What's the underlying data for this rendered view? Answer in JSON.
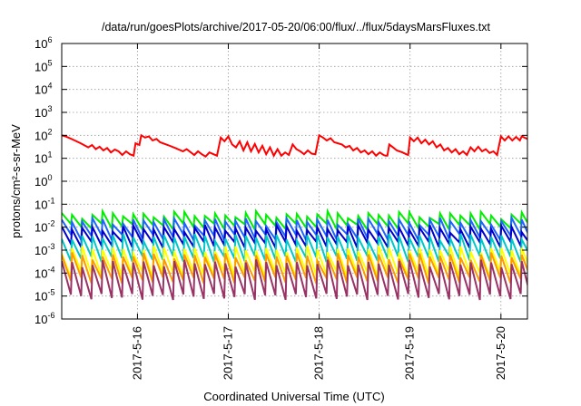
{
  "chart_data": {
    "type": "line",
    "title": "/data/run/goesPlots/archive/2017-05-20/06:00/flux/../flux/5daysMarsFluxes.txt",
    "xlabel": "Coordinated Universal Time (UTC)",
    "ylabel": "protons/cm²-s-sr-MeV",
    "y_scale": "log",
    "ylim": [
      1e-06,
      1000000
    ],
    "xlim": [
      "2017-05-15T04:00",
      "2017-05-20T07:00"
    ],
    "y_ticks": [
      {
        "base": "10",
        "exp": "-6",
        "value": 1e-06
      },
      {
        "base": "10",
        "exp": "-5",
        "value": 1e-05
      },
      {
        "base": "10",
        "exp": "-4",
        "value": 0.0001
      },
      {
        "base": "10",
        "exp": "-3",
        "value": 0.001
      },
      {
        "base": "10",
        "exp": "-2",
        "value": 0.01
      },
      {
        "base": "10",
        "exp": "-1",
        "value": 0.1
      },
      {
        "base": "10",
        "exp": "0",
        "value": 1
      },
      {
        "base": "10",
        "exp": "1",
        "value": 10
      },
      {
        "base": "10",
        "exp": "2",
        "value": 100
      },
      {
        "base": "10",
        "exp": "3",
        "value": 1000
      },
      {
        "base": "10",
        "exp": "4",
        "value": 10000
      },
      {
        "base": "10",
        "exp": "5",
        "value": 100000
      },
      {
        "base": "10",
        "exp": "6",
        "value": 1000000
      }
    ],
    "x_ticks": [
      {
        "label": "2017-5-16",
        "value": "2017-05-16T00:00"
      },
      {
        "label": "2017-5-17",
        "value": "2017-05-17T00:00"
      },
      {
        "label": "2017-5-18",
        "value": "2017-05-18T00:00"
      },
      {
        "label": "2017-5-19",
        "value": "2017-05-19T00:00"
      },
      {
        "label": "2017-5-20",
        "value": "2017-05-20T00:00"
      }
    ],
    "grid": true,
    "legend": "none",
    "series": [
      {
        "color": "#ff0000",
        "points": [
          [
            "2017-05-15T04:00",
            100
          ],
          [
            "2017-05-15T05:00",
            90
          ],
          [
            "2017-05-15T07:00",
            65
          ],
          [
            "2017-05-15T09:00",
            45
          ],
          [
            "2017-05-15T11:00",
            30
          ],
          [
            "2017-05-15T12:00",
            38
          ],
          [
            "2017-05-15T13:00",
            25
          ],
          [
            "2017-05-15T14:00",
            32
          ],
          [
            "2017-05-15T15:00",
            22
          ],
          [
            "2017-05-15T16:00",
            28
          ],
          [
            "2017-05-15T17:00",
            18
          ],
          [
            "2017-05-15T18:00",
            24
          ],
          [
            "2017-05-15T19:00",
            20
          ],
          [
            "2017-05-15T20:00",
            14
          ],
          [
            "2017-05-15T21:00",
            20
          ],
          [
            "2017-05-15T22:00",
            15
          ],
          [
            "2017-05-15T23:00",
            13
          ],
          [
            "2017-05-15T23:30",
            45
          ],
          [
            "2017-05-16T00:30",
            38
          ],
          [
            "2017-05-16T01:00",
            100
          ],
          [
            "2017-05-16T02:00",
            80
          ],
          [
            "2017-05-16T03:00",
            90
          ],
          [
            "2017-05-16T04:00",
            60
          ],
          [
            "2017-05-16T05:00",
            70
          ],
          [
            "2017-05-16T06:00",
            50
          ],
          [
            "2017-05-16T08:00",
            38
          ],
          [
            "2017-05-16T10:00",
            28
          ],
          [
            "2017-05-16T12:00",
            20
          ],
          [
            "2017-05-16T13:00",
            25
          ],
          [
            "2017-05-16T15:00",
            14
          ],
          [
            "2017-05-16T16:00",
            20
          ],
          [
            "2017-05-16T17:00",
            15
          ],
          [
            "2017-05-16T18:00",
            12
          ],
          [
            "2017-05-16T19:00",
            18
          ],
          [
            "2017-05-16T21:00",
            13
          ],
          [
            "2017-05-16T22:00",
            80
          ],
          [
            "2017-05-16T23:00",
            55
          ],
          [
            "2017-05-17T00:00",
            90
          ],
          [
            "2017-05-17T01:00",
            40
          ],
          [
            "2017-05-17T02:00",
            30
          ],
          [
            "2017-05-17T03:00",
            55
          ],
          [
            "2017-05-17T04:00",
            22
          ],
          [
            "2017-05-17T05:00",
            50
          ],
          [
            "2017-05-17T06:00",
            20
          ],
          [
            "2017-05-17T07:00",
            42
          ],
          [
            "2017-05-17T08:00",
            18
          ],
          [
            "2017-05-17T09:00",
            35
          ],
          [
            "2017-05-17T10:00",
            15
          ],
          [
            "2017-05-17T11:00",
            30
          ],
          [
            "2017-05-17T12:00",
            13
          ],
          [
            "2017-05-17T13:00",
            25
          ],
          [
            "2017-05-17T14:00",
            13
          ],
          [
            "2017-05-17T15:00",
            18
          ],
          [
            "2017-05-17T16:00",
            14
          ],
          [
            "2017-05-17T17:00",
            40
          ],
          [
            "2017-05-17T18:00",
            25
          ],
          [
            "2017-05-17T19:00",
            20
          ],
          [
            "2017-05-17T20:00",
            15
          ],
          [
            "2017-05-17T21:00",
            22
          ],
          [
            "2017-05-17T22:00",
            16
          ],
          [
            "2017-05-17T23:00",
            15
          ],
          [
            "2017-05-18T00:00",
            100
          ],
          [
            "2017-05-18T01:00",
            80
          ],
          [
            "2017-05-18T02:00",
            60
          ],
          [
            "2017-05-18T03:00",
            75
          ],
          [
            "2017-05-18T04:00",
            50
          ],
          [
            "2017-05-18T06:00",
            40
          ],
          [
            "2017-05-18T07:00",
            30
          ],
          [
            "2017-05-18T08:00",
            35
          ],
          [
            "2017-05-18T09:00",
            22
          ],
          [
            "2017-05-18T10:00",
            28
          ],
          [
            "2017-05-18T11:00",
            18
          ],
          [
            "2017-05-18T12:00",
            22
          ],
          [
            "2017-05-18T13:00",
            15
          ],
          [
            "2017-05-18T14:00",
            20
          ],
          [
            "2017-05-18T15:00",
            13
          ],
          [
            "2017-05-18T16:00",
            18
          ],
          [
            "2017-05-18T17:00",
            14
          ],
          [
            "2017-05-18T17:30",
            13
          ],
          [
            "2017-05-18T18:00",
            13
          ],
          [
            "2017-05-18T18:30",
            40
          ],
          [
            "2017-05-18T19:30",
            30
          ],
          [
            "2017-05-18T20:30",
            22
          ],
          [
            "2017-05-18T22:00",
            18
          ],
          [
            "2017-05-18T23:00",
            15
          ],
          [
            "2017-05-18T23:30",
            14
          ],
          [
            "2017-05-19T00:00",
            80
          ],
          [
            "2017-05-19T01:00",
            55
          ],
          [
            "2017-05-19T02:00",
            80
          ],
          [
            "2017-05-19T03:00",
            45
          ],
          [
            "2017-05-19T04:00",
            65
          ],
          [
            "2017-05-19T05:00",
            40
          ],
          [
            "2017-05-19T06:00",
            55
          ],
          [
            "2017-05-19T07:00",
            30
          ],
          [
            "2017-05-19T08:00",
            40
          ],
          [
            "2017-05-19T09:00",
            22
          ],
          [
            "2017-05-19T10:00",
            28
          ],
          [
            "2017-05-19T11:00",
            18
          ],
          [
            "2017-05-19T12:00",
            25
          ],
          [
            "2017-05-19T13:00",
            15
          ],
          [
            "2017-05-19T14:00",
            20
          ],
          [
            "2017-05-19T15:00",
            14
          ],
          [
            "2017-05-19T16:00",
            30
          ],
          [
            "2017-05-19T17:00",
            20
          ],
          [
            "2017-05-19T18:00",
            32
          ],
          [
            "2017-05-19T19:00",
            20
          ],
          [
            "2017-05-19T20:00",
            25
          ],
          [
            "2017-05-19T21:00",
            17
          ],
          [
            "2017-05-19T22:00",
            20
          ],
          [
            "2017-05-19T23:00",
            14
          ],
          [
            "2017-05-20T00:00",
            90
          ],
          [
            "2017-05-20T01:00",
            60
          ],
          [
            "2017-05-20T02:00",
            90
          ],
          [
            "2017-05-20T03:00",
            60
          ],
          [
            "2017-05-20T04:00",
            85
          ],
          [
            "2017-05-20T05:00",
            60
          ],
          [
            "2017-05-20T05:30",
            90
          ],
          [
            "2017-05-20T07:00",
            70
          ]
        ]
      },
      {
        "color": "#00ee00",
        "base": 0.02,
        "peak_factor": 1.8,
        "trough_factor": 0.55,
        "period_hours": 2.7
      },
      {
        "color": "#1e64ff",
        "base": 0.011,
        "peak_factor": 1.7,
        "trough_factor": 0.35,
        "period_hours": 2.7
      },
      {
        "color": "#0000cc",
        "base": 0.0045,
        "peak_factor": 2.0,
        "trough_factor": 0.4,
        "period_hours": 2.7
      },
      {
        "color": "#00c8c8",
        "base": 0.0017,
        "peak_factor": 2.3,
        "trough_factor": 0.25,
        "period_hours": 2.7
      },
      {
        "color": "#ffff00",
        "base": 0.00045,
        "peak_factor": 2.5,
        "trough_factor": 0.2,
        "period_hours": 2.7
      },
      {
        "color": "#ff9900",
        "base": 0.00025,
        "peak_factor": 2.3,
        "trough_factor": 0.2,
        "period_hours": 2.7
      },
      {
        "color": "#993366",
        "base": 8e-05,
        "peak_factor": 3.5,
        "trough_factor": 0.12,
        "period_hours": 2.7
      }
    ]
  }
}
